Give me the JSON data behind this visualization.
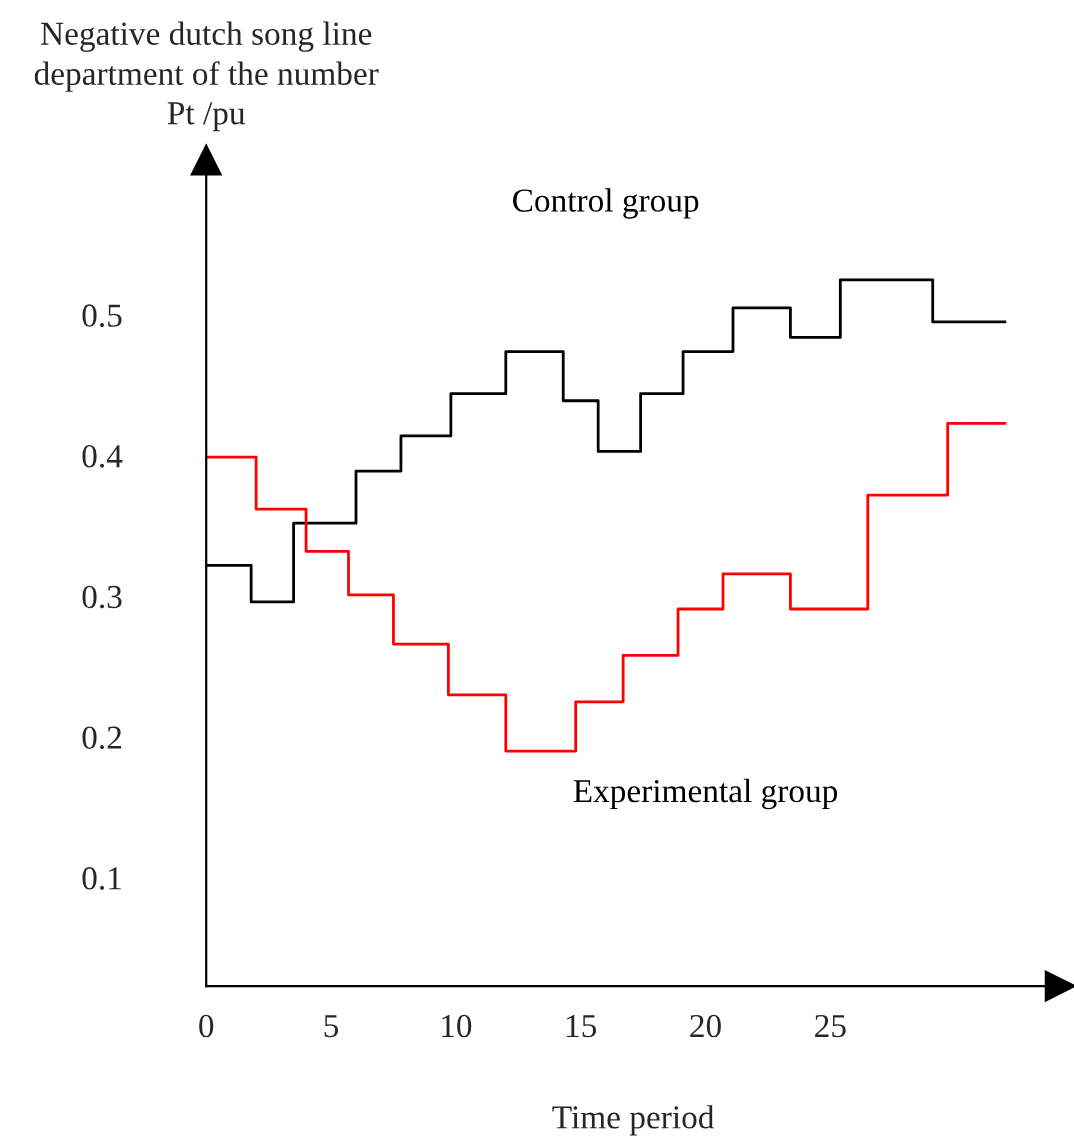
{
  "chart_data": {
    "type": "step",
    "ylabel": "Negative dutch song line\ndepartment of the number\nPt /pu",
    "xlabel": "Time period",
    "xlim": [
      0,
      34.2
    ],
    "ylim": [
      0.023,
      0.61
    ],
    "xticks": [
      0,
      5,
      10,
      15,
      20,
      25
    ],
    "yticks": [
      0.1,
      0.2,
      0.3,
      0.4,
      0.5
    ],
    "grid": false,
    "legend": false,
    "marker": "none",
    "line_style": "solid",
    "series": [
      {
        "name": "Control group",
        "color": "#000000",
        "x": [
          0,
          1.8,
          3.5,
          6.0,
          7.8,
          9.8,
          12.0,
          14.3,
          15.7,
          17.4,
          19.1,
          21.1,
          23.4,
          25.4,
          29.1,
          32.0
        ],
        "values": [
          0.322,
          0.296,
          0.352,
          0.389,
          0.414,
          0.444,
          0.474,
          0.439,
          0.403,
          0.444,
          0.474,
          0.505,
          0.484,
          0.525,
          0.495,
          0.495
        ]
      },
      {
        "name": "Experimental group",
        "color": "#ff0000",
        "x": [
          0,
          2.0,
          4.0,
          5.7,
          7.5,
          9.7,
          12.0,
          14.8,
          16.7,
          18.9,
          20.7,
          23.4,
          26.5,
          29.7,
          32.0
        ],
        "values": [
          0.399,
          0.362,
          0.332,
          0.301,
          0.266,
          0.23,
          0.19,
          0.225,
          0.258,
          0.291,
          0.316,
          0.291,
          0.372,
          0.423,
          0.423
        ]
      }
    ]
  }
}
